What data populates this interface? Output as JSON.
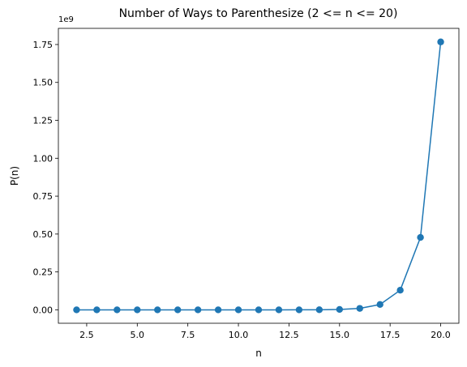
{
  "chart_data": {
    "type": "line",
    "title": "Number of Ways to Parenthesize (2 <= n <= 20)",
    "xlabel": "n",
    "ylabel": "P(n)",
    "y_offset_label": "1e9",
    "xlim": [
      1.1,
      20.9
    ],
    "ylim": [
      -88409740,
      1856604554
    ],
    "x_ticks": [
      2.5,
      5.0,
      7.5,
      10.0,
      12.5,
      15.0,
      17.5,
      20.0
    ],
    "x_tick_labels": [
      "2.5",
      "5.0",
      "7.5",
      "10.0",
      "12.5",
      "15.0",
      "17.5",
      "20.0"
    ],
    "y_ticks": [
      0,
      250000000,
      500000000,
      750000000,
      1000000000,
      1250000000,
      1500000000,
      1750000000
    ],
    "y_tick_labels": [
      "0.00",
      "0.25",
      "0.50",
      "0.75",
      "1.00",
      "1.25",
      "1.50",
      "1.75"
    ],
    "grid": false,
    "marker": "circle",
    "color": "#1f77b4",
    "series": [
      {
        "x": [
          2,
          3,
          4,
          5,
          6,
          7,
          8,
          9,
          10,
          11,
          12,
          13,
          14,
          15,
          16,
          17,
          18,
          19,
          20
        ],
        "values": [
          1,
          2,
          5,
          14,
          42,
          132,
          429,
          1430,
          4862,
          16796,
          58786,
          208012,
          742900,
          2674440,
          9694845,
          35357670,
          129644790,
          477638700,
          1767263190
        ]
      }
    ]
  }
}
